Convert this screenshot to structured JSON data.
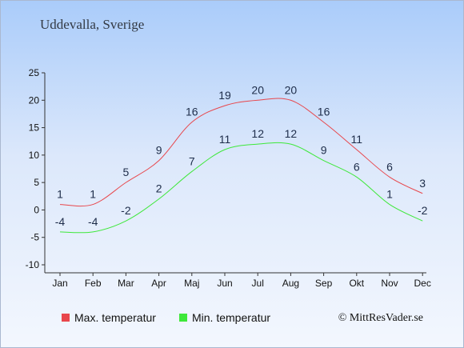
{
  "title": "Uddevalla, Sverige",
  "copyright": "© MittResVader.se",
  "chart_data": {
    "type": "line",
    "categories": [
      "Jan",
      "Feb",
      "Mar",
      "Apr",
      "Maj",
      "Jun",
      "Jul",
      "Aug",
      "Sep",
      "Okt",
      "Nov",
      "Dec"
    ],
    "series": [
      {
        "name": "Max. temperatur",
        "color": "#e8474c",
        "values": [
          1,
          1,
          5,
          9,
          16,
          19,
          20,
          20,
          16,
          11,
          6,
          3
        ]
      },
      {
        "name": "Min. temperatur",
        "color": "#3ee83a",
        "values": [
          -4,
          -4,
          -2,
          2,
          7,
          11,
          12,
          12,
          9,
          6,
          1,
          -2
        ]
      }
    ],
    "ylim": [
      -10,
      25
    ],
    "yticks": [
      -10,
      -5,
      0,
      5,
      10,
      15,
      20,
      25
    ],
    "grid": false,
    "legend": "bottom"
  }
}
